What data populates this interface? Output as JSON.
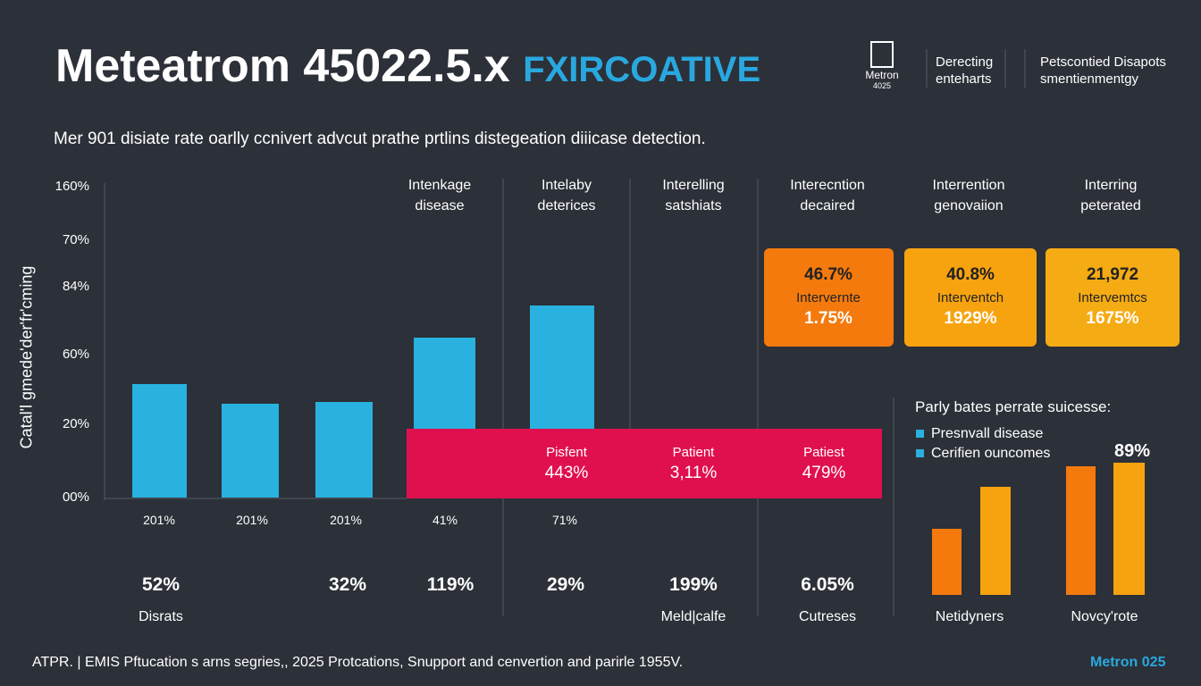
{
  "header": {
    "title_main": "Meteatrom 45022.5.x",
    "title_accent": "FXIRCOATIVE",
    "logo": [
      "Metron",
      "4025"
    ],
    "nav": [
      [
        "Derecting",
        "enteharts"
      ],
      [
        "Petscontied Disapots",
        "smentienmentgy"
      ]
    ]
  },
  "subtitle": "Mer 901 disiate rate oarlly ccnivert advcut prathe prtlins distegeation diiicase detection.",
  "axis": {
    "label": "Catal'l gmede'der'fr'cming",
    "ticks": [
      "160%",
      "70%",
      "84%",
      "60%",
      "20%",
      "00%"
    ]
  },
  "columns": [
    [
      "Intenkage",
      "disease"
    ],
    [
      "Intelaby",
      "deterices"
    ],
    [
      "Interelling",
      "satshiats"
    ],
    [
      "Interecntion",
      "decaired"
    ],
    [
      "Interrention",
      "genovaiion"
    ],
    [
      "Interring",
      "peterated"
    ]
  ],
  "cards": [
    [
      "46.7%",
      "Intervernte",
      "1.75%"
    ],
    [
      "40.8%",
      "Interventch",
      "1929%"
    ],
    [
      "21,972",
      "Intervemtcs",
      "1675%"
    ]
  ],
  "banner": [
    [
      "Pisfent",
      "443%"
    ],
    [
      "Patient",
      "3,11%"
    ],
    [
      "Patiest",
      "479%"
    ]
  ],
  "x_labels": [
    "201%",
    "201%",
    "201%",
    "41%",
    "71%"
  ],
  "big_row": [
    "52%",
    "32%",
    "119%",
    "29%",
    "199%",
    "6.05%"
  ],
  "bottom_row": [
    "Disrats",
    "Meld|calfe",
    "Cutreses",
    "Netidyners",
    "Novcy'rote"
  ],
  "panel": {
    "title": "Parly bates perrate suicesse:",
    "legend": [
      "Presnvall disease",
      "Cerifien ouncomes"
    ],
    "highlight": "89%"
  },
  "footer": {
    "text": "ATPR. | EMIS Pftucation s arns segries,, 2025 Protcations, Snupport and cenvertion and parirle 1955V.",
    "brand": "Metron 025"
  }
}
